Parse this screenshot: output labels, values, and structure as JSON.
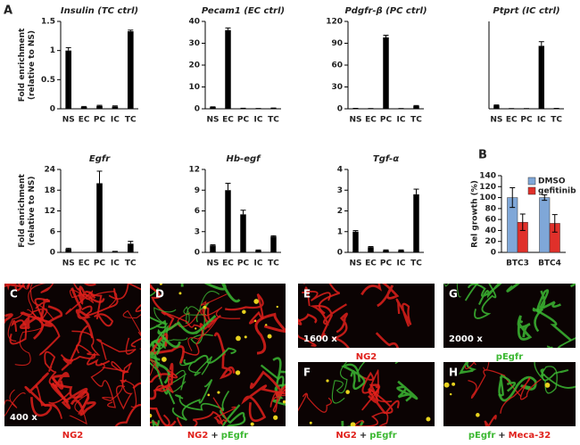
{
  "panel_labels": [
    "A",
    "B"
  ],
  "chart_data": [
    {
      "type": "bar",
      "title": "Insulin (TC ctrl)",
      "y_label": [
        "Fold enrichment",
        "(relative to NS)"
      ],
      "categories": [
        "NS",
        "EC",
        "PC",
        "IC",
        "TC"
      ],
      "values": [
        1.0,
        0.03,
        0.05,
        0.04,
        1.33
      ],
      "errors": [
        0.05,
        0.01,
        0.01,
        0.01,
        0.02
      ],
      "color": "#000000",
      "ylim": [
        0,
        1.5
      ],
      "yticks": [
        0,
        0.5,
        1,
        1.5
      ]
    },
    {
      "type": "bar",
      "title": "Pecam1 (EC ctrl)",
      "categories": [
        "NS",
        "EC",
        "PC",
        "IC",
        "TC"
      ],
      "values": [
        0.8,
        36,
        0.2,
        0.1,
        0.3
      ],
      "errors": [
        0.1,
        1,
        0.05,
        0.05,
        0.05
      ],
      "color": "#000000",
      "ylim": [
        0,
        40
      ],
      "yticks": [
        0,
        10,
        20,
        30,
        40
      ]
    },
    {
      "type": "bar",
      "title": "Pdgfr-β (PC ctrl)",
      "categories": [
        "NS",
        "EC",
        "PC",
        "IC",
        "TC"
      ],
      "values": [
        0.5,
        0.3,
        98,
        0.3,
        4
      ],
      "errors": [
        0.1,
        0.1,
        3,
        0.1,
        0.5
      ],
      "color": "#000000",
      "ylim": [
        0,
        120
      ],
      "yticks": [
        0,
        30,
        60,
        90,
        120
      ]
    },
    {
      "type": "bar",
      "title": "Ptprt (IC ctrl)",
      "categories": [
        "NS",
        "EC",
        "PC",
        "IC",
        "TC"
      ],
      "values": [
        1,
        0.05,
        0.05,
        18,
        0.1
      ],
      "errors": [
        0.1,
        0.02,
        0.02,
        1.2,
        0.02
      ],
      "color": "#000000",
      "ylim": [
        0,
        25
      ]
    },
    {
      "type": "bar",
      "title": "Egfr",
      "y_label": [
        "Fold enrichment",
        "(relative to NS)"
      ],
      "categories": [
        "NS",
        "EC",
        "PC",
        "IC",
        "TC"
      ],
      "values": [
        1,
        0,
        20,
        0.2,
        2.5
      ],
      "errors": [
        0.2,
        0,
        3.5,
        0.1,
        0.7
      ],
      "color": "#000000",
      "ylim": [
        0,
        24
      ],
      "yticks": [
        0,
        6,
        12,
        18,
        24
      ]
    },
    {
      "type": "bar",
      "title": "Hb-egf",
      "categories": [
        "NS",
        "EC",
        "PC",
        "IC",
        "TC"
      ],
      "values": [
        1,
        9,
        5.5,
        0.3,
        2.3
      ],
      "errors": [
        0.1,
        1,
        0.6,
        0.05,
        0.1
      ],
      "color": "#000000",
      "ylim": [
        0,
        12
      ],
      "yticks": [
        0,
        3,
        6,
        9,
        12
      ]
    },
    {
      "type": "bar",
      "title": "Tgf-α",
      "categories": [
        "NS",
        "EC",
        "PC",
        "IC",
        "TC"
      ],
      "values": [
        1,
        0.25,
        0.1,
        0.1,
        2.8
      ],
      "errors": [
        0.05,
        0.03,
        0.02,
        0.02,
        0.25
      ],
      "color": "#000000",
      "ylim": [
        0,
        4
      ],
      "yticks": [
        0,
        1,
        2,
        3,
        4
      ]
    },
    {
      "type": "bar",
      "y_label": [
        "Rel growth (%)"
      ],
      "categories": [
        "BTC3",
        "BTC4"
      ],
      "series": [
        {
          "name": "DMSO",
          "color": "#7fa7d8",
          "values": [
            100,
            100
          ],
          "errors": [
            18,
            5
          ]
        },
        {
          "name": "gefitinib",
          "color": "#e0302a",
          "values": [
            55,
            53
          ],
          "errors": [
            15,
            16
          ]
        }
      ],
      "ylim": [
        0,
        140
      ],
      "yticks": [
        0,
        20,
        40,
        60,
        80,
        100,
        120,
        140
      ],
      "legend": "upper right"
    }
  ],
  "images": [
    {
      "label": "C",
      "magnification": "400 x",
      "caption": [
        {
          "text": "NG2",
          "color": "#e0201b"
        }
      ]
    },
    {
      "label": "D",
      "caption": [
        {
          "text": "NG2",
          "color": "#e0201b"
        },
        {
          "text": "+",
          "color": "#222222"
        },
        {
          "text": "pEgfr",
          "color": "#3cb832"
        }
      ]
    },
    {
      "label": "E",
      "magnification": "1600 x",
      "caption": [
        {
          "text": "NG2",
          "color": "#e0201b"
        }
      ]
    },
    {
      "label": "G",
      "magnification": "2000 x",
      "caption": [
        {
          "text": "pEgfr",
          "color": "#3cb832"
        }
      ]
    },
    {
      "label": "F",
      "caption": [
        {
          "text": "NG2",
          "color": "#e0201b"
        },
        {
          "text": "+",
          "color": "#222222"
        },
        {
          "text": "pEgfr",
          "color": "#3cb832"
        }
      ]
    },
    {
      "label": "H",
      "caption": [
        {
          "text": "pEgfr",
          "color": "#3cb832"
        },
        {
          "text": "+",
          "color": "#222222"
        },
        {
          "text": "Meca-32",
          "color": "#e0201b"
        }
      ]
    }
  ]
}
